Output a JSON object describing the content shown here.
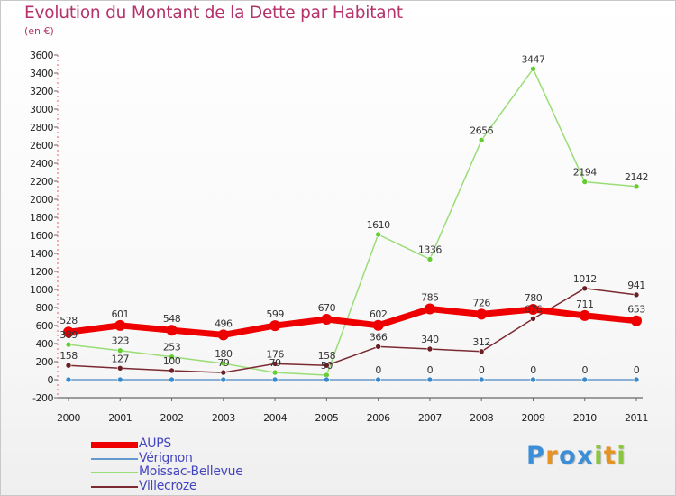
{
  "header": {
    "title": "Evolution du Montant de la Dette par Habitant",
    "subtitle": "(en €)"
  },
  "logo": {
    "letters": [
      "P",
      "r",
      "o",
      "x",
      "i",
      "t",
      "i"
    ]
  },
  "colors": {
    "title": "#b5326b",
    "legend_text": "#4545c0",
    "logo": [
      "#3a8fd8",
      "#e89320",
      "#3a8fd8",
      "#3a8fd8",
      "#8cc63f",
      "#e89320",
      "#8cc63f"
    ]
  },
  "chart_data": {
    "type": "line",
    "title": "Evolution du Montant de la Dette par Habitant",
    "ylabel": "(en €)",
    "xlabel": "",
    "x": [
      "2000",
      "2001",
      "2002",
      "2003",
      "2004",
      "2005",
      "2006",
      "2007",
      "2008",
      "2009",
      "2010",
      "2011"
    ],
    "ylim": [
      -200,
      3600
    ],
    "yticks": [
      -200,
      0,
      200,
      400,
      600,
      800,
      1000,
      1200,
      1400,
      1600,
      1800,
      2000,
      2200,
      2400,
      2600,
      2800,
      3000,
      3200,
      3400,
      3600
    ],
    "grid": false,
    "legend_position": "bottom-left",
    "series": [
      {
        "name": "Moissac-Bellevue",
        "color": "#99dd77",
        "marker_color": "#66cc33",
        "values": [
          389,
          323,
          253,
          180,
          79,
          50,
          1610,
          1336,
          2656,
          3447,
          2194,
          2142
        ],
        "labels": [
          "389",
          "323",
          "253",
          "180",
          "79",
          "50",
          "1610",
          "1336",
          "2656",
          "3447",
          "2194",
          "2142"
        ]
      },
      {
        "name": "Villecroze",
        "color": "#7a2a30",
        "marker_color": "#6a1f25",
        "values": [
          158,
          127,
          100,
          79,
          176,
          158,
          366,
          340,
          312,
          676,
          1012,
          941
        ],
        "labels": [
          "158",
          "127",
          "100",
          "79",
          "176",
          "158",
          "366",
          "340",
          "312",
          "676",
          "1012",
          "941"
        ]
      },
      {
        "name": "Vérignon",
        "color": "#6699cc",
        "marker_color": "#3a88cc",
        "values": [
          0,
          0,
          0,
          0,
          0,
          0,
          0,
          0,
          0,
          0,
          0,
          0
        ],
        "labels": [
          "",
          "",
          "",
          "",
          "",
          "",
          "0",
          "0",
          "0",
          "0",
          "0",
          "0"
        ]
      },
      {
        "name": "AUPS",
        "color": "#ee0000",
        "marker_color": "#ee0000",
        "values": [
          528,
          601,
          548,
          496,
          599,
          670,
          602,
          785,
          726,
          780,
          711,
          653
        ],
        "labels": [
          "528",
          "601",
          "548",
          "496",
          "599",
          "670",
          "602",
          "785",
          "726",
          "780",
          "711",
          "653"
        ]
      }
    ]
  },
  "legend": {
    "items": [
      {
        "label": "AUPS",
        "color": "#ee0000"
      },
      {
        "label": "Vérignon",
        "color": "#6699cc"
      },
      {
        "label": "Moissac-Bellevue",
        "color": "#99dd77"
      },
      {
        "label": "Villecroze",
        "color": "#7a2a30"
      }
    ]
  }
}
